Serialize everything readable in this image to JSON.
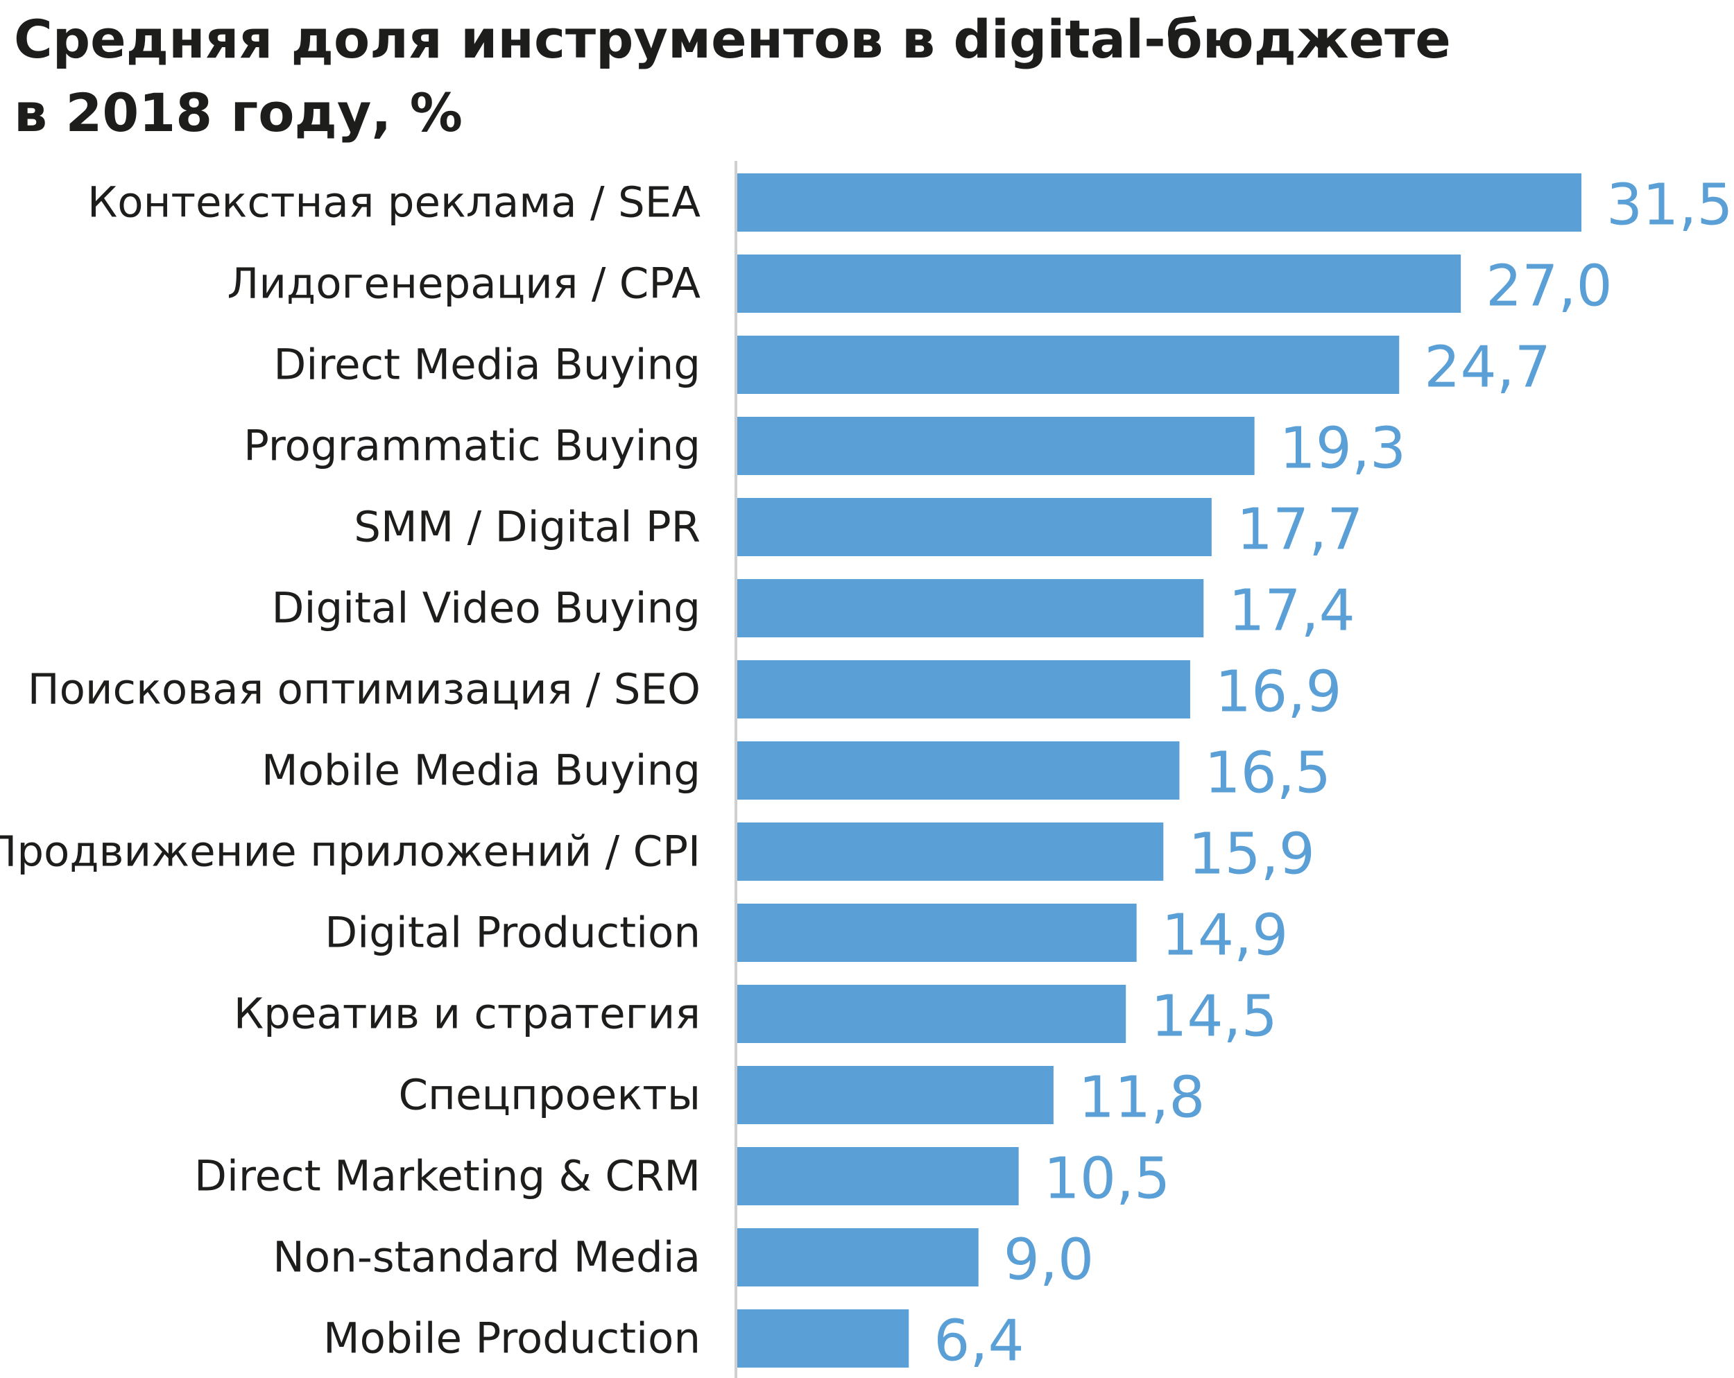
{
  "colors": {
    "bar": "#5a9fd5",
    "value_text": "#5a9fd5",
    "axis": "#cfcfcf",
    "text": "#1d1d1b"
  },
  "chart_data": {
    "type": "bar",
    "orientation": "horizontal",
    "title_line1": "Средняя доля инструментов в digital-бюджете",
    "title_line2": "в 2018 году, %",
    "categories": [
      "Контекстная реклама / SEA",
      "Лидогенерация / CPA",
      "Direct Media Buying",
      "Programmatic Buying",
      "SMM / Digital PR",
      "Digital Video Buying",
      "Поисковая оптимизация / SEO",
      "Mobile Media Buying",
      "Продвижение приложений / CPI",
      "Digital Production",
      "Креатив и стратегия",
      "Спецпроекты",
      "Direct Marketing & CRM",
      "Non-standard Media",
      "Mobile Production"
    ],
    "values": [
      31.5,
      27.0,
      24.7,
      19.3,
      17.7,
      17.4,
      16.9,
      16.5,
      15.9,
      14.9,
      14.5,
      11.8,
      10.5,
      9.0,
      6.4
    ],
    "value_labels": [
      "31,5",
      "27,0",
      "24,7",
      "19,3",
      "17,7",
      "17,4",
      "16,9",
      "16,5",
      "15,9",
      "14,9",
      "14,5",
      "11,8",
      "10,5",
      "9,0",
      "6,4"
    ],
    "xlim": [
      0,
      31.5
    ],
    "xlabel": "",
    "ylabel": "",
    "grid": false
  }
}
